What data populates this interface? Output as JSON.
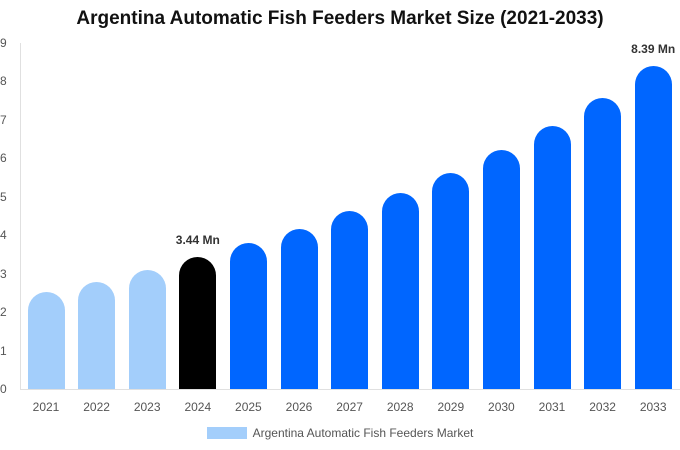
{
  "chart_data": {
    "type": "bar",
    "title": "Argentina Automatic Fish Feeders Market Size (2021-2033)",
    "xlabel": "",
    "ylabel": "",
    "ylim": [
      0,
      9
    ],
    "yticks": [
      0,
      1,
      2,
      3,
      4,
      5,
      6,
      7,
      8,
      9
    ],
    "grid": false,
    "legend_position": "bottom",
    "categories": [
      "2021",
      "2022",
      "2023",
      "2024",
      "2025",
      "2026",
      "2027",
      "2028",
      "2029",
      "2030",
      "2031",
      "2032",
      "2033"
    ],
    "series": [
      {
        "name": "Argentina Automatic Fish Feeders Market",
        "values": [
          2.53,
          2.79,
          3.1,
          3.44,
          3.8,
          4.17,
          4.64,
          5.1,
          5.63,
          6.22,
          6.85,
          7.58,
          8.39
        ]
      }
    ],
    "annotations": [
      {
        "category": "2024",
        "text": "3.44 Mn"
      },
      {
        "category": "2033",
        "text": "8.39 Mn"
      }
    ],
    "colors": {
      "historical": "#a3cefb",
      "base_year": "#000000",
      "forecast": "#0066ff"
    },
    "bar_color_by_index": [
      "#a3cefb",
      "#a3cefb",
      "#a3cefb",
      "#000000",
      "#0066ff",
      "#0066ff",
      "#0066ff",
      "#0066ff",
      "#0066ff",
      "#0066ff",
      "#0066ff",
      "#0066ff",
      "#0066ff"
    ]
  },
  "legend": {
    "label": "Argentina Automatic Fish Feeders Market",
    "swatch_color": "#a3cefb"
  }
}
